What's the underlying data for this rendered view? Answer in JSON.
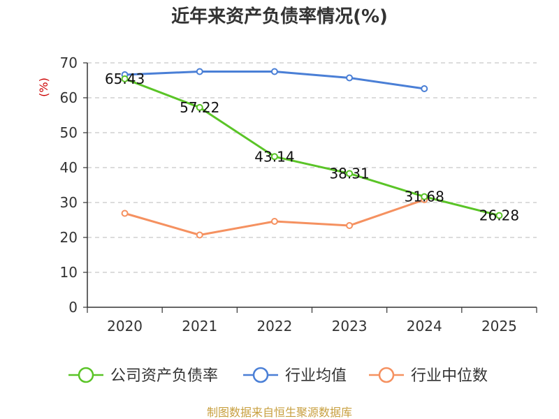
{
  "chart_data": {
    "type": "line",
    "title": "近年来资产负债率情况(%)",
    "ylabel": "(%)",
    "xlabel": "",
    "x": [
      "2020",
      "2021",
      "2022",
      "2023",
      "2024",
      "2025"
    ],
    "yticks": [
      "0",
      "10",
      "20",
      "30",
      "40",
      "50",
      "60",
      "70"
    ],
    "ylim": [
      0,
      70
    ],
    "grid": true,
    "legend_position": "bottom",
    "series": [
      {
        "name": "公司资产负债率",
        "color": "#5ac427",
        "values": [
          65.43,
          57.22,
          43.14,
          38.31,
          31.68,
          26.28
        ],
        "labels": [
          "65.43",
          "57.22",
          "43.14",
          "38.31",
          "31.68",
          "26.28"
        ]
      },
      {
        "name": "行业均值",
        "color": "#4a7fd6",
        "values": [
          66.6,
          67.5,
          67.5,
          65.7,
          62.6,
          null
        ]
      },
      {
        "name": "行业中位数",
        "color": "#f59160",
        "values": [
          26.9,
          20.7,
          24.6,
          23.4,
          30.8,
          null
        ]
      }
    ]
  },
  "source": "制图数据来自恒生聚源数据库"
}
